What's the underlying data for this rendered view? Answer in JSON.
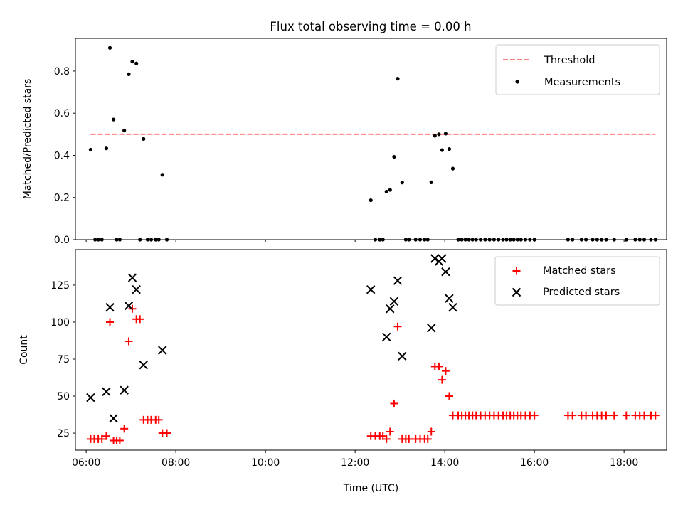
{
  "title": "Flux total observing time = 0.00 h",
  "chart_data": [
    {
      "type": "scatter",
      "ylabel": "Matched/Predicted stars",
      "xlim": [
        5.76,
        18.95
      ],
      "ylim": [
        0,
        0.955
      ],
      "x_unit": "hours (UTC)",
      "xticks": [
        6,
        8,
        10,
        12,
        14,
        16,
        18
      ],
      "yticks": [
        0,
        0.2,
        0.4,
        0.6,
        0.8
      ],
      "ytick_labels": [
        "0.0",
        "0.2",
        "0.4",
        "0.6",
        "0.8"
      ],
      "legend": {
        "position": "top-right",
        "entries": [
          {
            "label": "Threshold",
            "color": "#ff7f7f",
            "style": "dashed-line"
          },
          {
            "label": "Measurements",
            "color": "#000000",
            "style": "dot"
          }
        ]
      },
      "threshold": {
        "name": "Threshold",
        "value": 0.5,
        "x_start": 6.1,
        "x_end": 18.7,
        "color": "#ff7f7f"
      },
      "series": [
        {
          "name": "Measurements",
          "color": "#000000",
          "points": [
            [
              6.1,
              0.427
            ],
            [
              6.2,
              0.0
            ],
            [
              6.27,
              0.0
            ],
            [
              6.35,
              0.0
            ],
            [
              6.45,
              0.433
            ],
            [
              6.53,
              0.91
            ],
            [
              6.61,
              0.57
            ],
            [
              6.68,
              0.0
            ],
            [
              6.75,
              0.0
            ],
            [
              6.85,
              0.518
            ],
            [
              6.95,
              0.785
            ],
            [
              7.03,
              0.845
            ],
            [
              7.12,
              0.836
            ],
            [
              7.2,
              0.0
            ],
            [
              7.28,
              0.478
            ],
            [
              7.37,
              0.0
            ],
            [
              7.45,
              0.0
            ],
            [
              7.55,
              0.0
            ],
            [
              7.62,
              0.0
            ],
            [
              7.7,
              0.308
            ],
            [
              7.8,
              0.0
            ],
            [
              12.35,
              0.187
            ],
            [
              12.45,
              0.0
            ],
            [
              12.55,
              0.0
            ],
            [
              12.62,
              0.0
            ],
            [
              12.7,
              0.228
            ],
            [
              12.78,
              0.236
            ],
            [
              12.87,
              0.393
            ],
            [
              12.95,
              0.764
            ],
            [
              13.05,
              0.271
            ],
            [
              13.13,
              0.0
            ],
            [
              13.2,
              0.0
            ],
            [
              13.35,
              0.0
            ],
            [
              13.45,
              0.0
            ],
            [
              13.55,
              0.0
            ],
            [
              13.62,
              0.0
            ],
            [
              13.7,
              0.272
            ],
            [
              13.78,
              0.493
            ],
            [
              13.87,
              0.5
            ],
            [
              13.94,
              0.425
            ],
            [
              14.02,
              0.503
            ],
            [
              14.1,
              0.43
            ],
            [
              14.18,
              0.337
            ],
            [
              14.3,
              0.0
            ],
            [
              14.38,
              0.0
            ],
            [
              14.46,
              0.0
            ],
            [
              14.54,
              0.0
            ],
            [
              14.62,
              0.0
            ],
            [
              14.7,
              0.0
            ],
            [
              14.8,
              0.0
            ],
            [
              14.9,
              0.0
            ],
            [
              15.0,
              0.0
            ],
            [
              15.1,
              0.0
            ],
            [
              15.2,
              0.0
            ],
            [
              15.3,
              0.0
            ],
            [
              15.38,
              0.0
            ],
            [
              15.46,
              0.0
            ],
            [
              15.54,
              0.0
            ],
            [
              15.62,
              0.0
            ],
            [
              15.7,
              0.0
            ],
            [
              15.8,
              0.0
            ],
            [
              15.9,
              0.0
            ],
            [
              16.0,
              0.0
            ],
            [
              16.75,
              0.0
            ],
            [
              16.85,
              0.0
            ],
            [
              17.05,
              0.0
            ],
            [
              17.15,
              0.0
            ],
            [
              17.3,
              0.0
            ],
            [
              17.4,
              0.0
            ],
            [
              17.5,
              0.0
            ],
            [
              17.6,
              0.0
            ],
            [
              17.78,
              0.0
            ],
            [
              18.05,
              0.0
            ],
            [
              18.25,
              0.0
            ],
            [
              18.35,
              0.0
            ],
            [
              18.45,
              0.0
            ],
            [
              18.6,
              0.0
            ],
            [
              18.7,
              0.0
            ]
          ]
        }
      ]
    },
    {
      "type": "scatter",
      "xlabel": "Time (UTC)",
      "ylabel": "Count",
      "xlim": [
        5.76,
        18.95
      ],
      "ylim": [
        13.5,
        149
      ],
      "x_unit": "hours (UTC)",
      "xticks": [
        6,
        8,
        10,
        12,
        14,
        16,
        18
      ],
      "xtick_labels": [
        "06:00",
        "08:00",
        "10:00",
        "12:00",
        "14:00",
        "16:00",
        "18:00"
      ],
      "yticks": [
        25,
        50,
        75,
        100,
        125
      ],
      "ytick_labels": [
        "25",
        "50",
        "75",
        "100",
        "125"
      ],
      "legend": {
        "position": "top-right",
        "entries": [
          {
            "label": "Matched stars",
            "color": "#ff0000",
            "style": "plus"
          },
          {
            "label": "Predicted stars",
            "color": "#000000",
            "style": "x"
          }
        ]
      },
      "series": [
        {
          "name": "Matched stars",
          "color": "#ff0000",
          "marker": "plus",
          "points": [
            [
              6.1,
              21
            ],
            [
              6.18,
              21
            ],
            [
              6.27,
              21
            ],
            [
              6.35,
              21
            ],
            [
              6.45,
              23
            ],
            [
              6.53,
              100
            ],
            [
              6.61,
              20
            ],
            [
              6.68,
              20
            ],
            [
              6.75,
              20
            ],
            [
              6.85,
              28
            ],
            [
              6.95,
              87
            ],
            [
              7.03,
              109
            ],
            [
              7.12,
              102
            ],
            [
              7.2,
              102
            ],
            [
              7.28,
              34
            ],
            [
              7.37,
              34
            ],
            [
              7.45,
              34
            ],
            [
              7.55,
              34
            ],
            [
              7.62,
              34
            ],
            [
              7.7,
              25
            ],
            [
              7.8,
              25
            ],
            [
              12.35,
              23
            ],
            [
              12.45,
              23
            ],
            [
              12.55,
              23
            ],
            [
              12.62,
              23
            ],
            [
              12.7,
              21
            ],
            [
              12.78,
              26
            ],
            [
              12.87,
              45
            ],
            [
              12.95,
              97
            ],
            [
              13.05,
              21
            ],
            [
              13.13,
              21
            ],
            [
              13.2,
              21
            ],
            [
              13.35,
              21
            ],
            [
              13.45,
              21
            ],
            [
              13.55,
              21
            ],
            [
              13.62,
              21
            ],
            [
              13.7,
              26
            ],
            [
              13.78,
              70
            ],
            [
              13.87,
              70
            ],
            [
              13.94,
              61
            ],
            [
              14.02,
              67
            ],
            [
              14.1,
              50
            ],
            [
              14.18,
              37
            ],
            [
              14.3,
              37
            ],
            [
              14.38,
              37
            ],
            [
              14.46,
              37
            ],
            [
              14.54,
              37
            ],
            [
              14.62,
              37
            ],
            [
              14.7,
              37
            ],
            [
              14.8,
              37
            ],
            [
              14.9,
              37
            ],
            [
              15.0,
              37
            ],
            [
              15.1,
              37
            ],
            [
              15.2,
              37
            ],
            [
              15.3,
              37
            ],
            [
              15.38,
              37
            ],
            [
              15.46,
              37
            ],
            [
              15.54,
              37
            ],
            [
              15.62,
              37
            ],
            [
              15.7,
              37
            ],
            [
              15.8,
              37
            ],
            [
              15.9,
              37
            ],
            [
              16.0,
              37
            ],
            [
              16.75,
              37
            ],
            [
              16.85,
              37
            ],
            [
              17.05,
              37
            ],
            [
              17.15,
              37
            ],
            [
              17.3,
              37
            ],
            [
              17.4,
              37
            ],
            [
              17.5,
              37
            ],
            [
              17.6,
              37
            ],
            [
              17.78,
              37
            ],
            [
              18.05,
              37
            ],
            [
              18.25,
              37
            ],
            [
              18.35,
              37
            ],
            [
              18.45,
              37
            ],
            [
              18.6,
              37
            ],
            [
              18.7,
              37
            ]
          ]
        },
        {
          "name": "Predicted stars",
          "color": "#000000",
          "marker": "x",
          "points": [
            [
              6.1,
              49
            ],
            [
              6.45,
              53
            ],
            [
              6.53,
              110
            ],
            [
              6.61,
              35
            ],
            [
              6.85,
              54
            ],
            [
              6.95,
              111
            ],
            [
              7.03,
              130
            ],
            [
              7.12,
              122
            ],
            [
              7.28,
              71
            ],
            [
              7.7,
              81
            ],
            [
              12.35,
              122
            ],
            [
              12.7,
              90
            ],
            [
              12.78,
              109
            ],
            [
              12.87,
              114
            ],
            [
              12.95,
              128
            ],
            [
              13.05,
              77
            ],
            [
              13.7,
              96
            ],
            [
              13.78,
              143
            ],
            [
              13.87,
              141
            ],
            [
              13.94,
              143
            ],
            [
              14.02,
              134
            ],
            [
              14.1,
              116
            ],
            [
              14.18,
              110
            ]
          ]
        }
      ]
    }
  ]
}
